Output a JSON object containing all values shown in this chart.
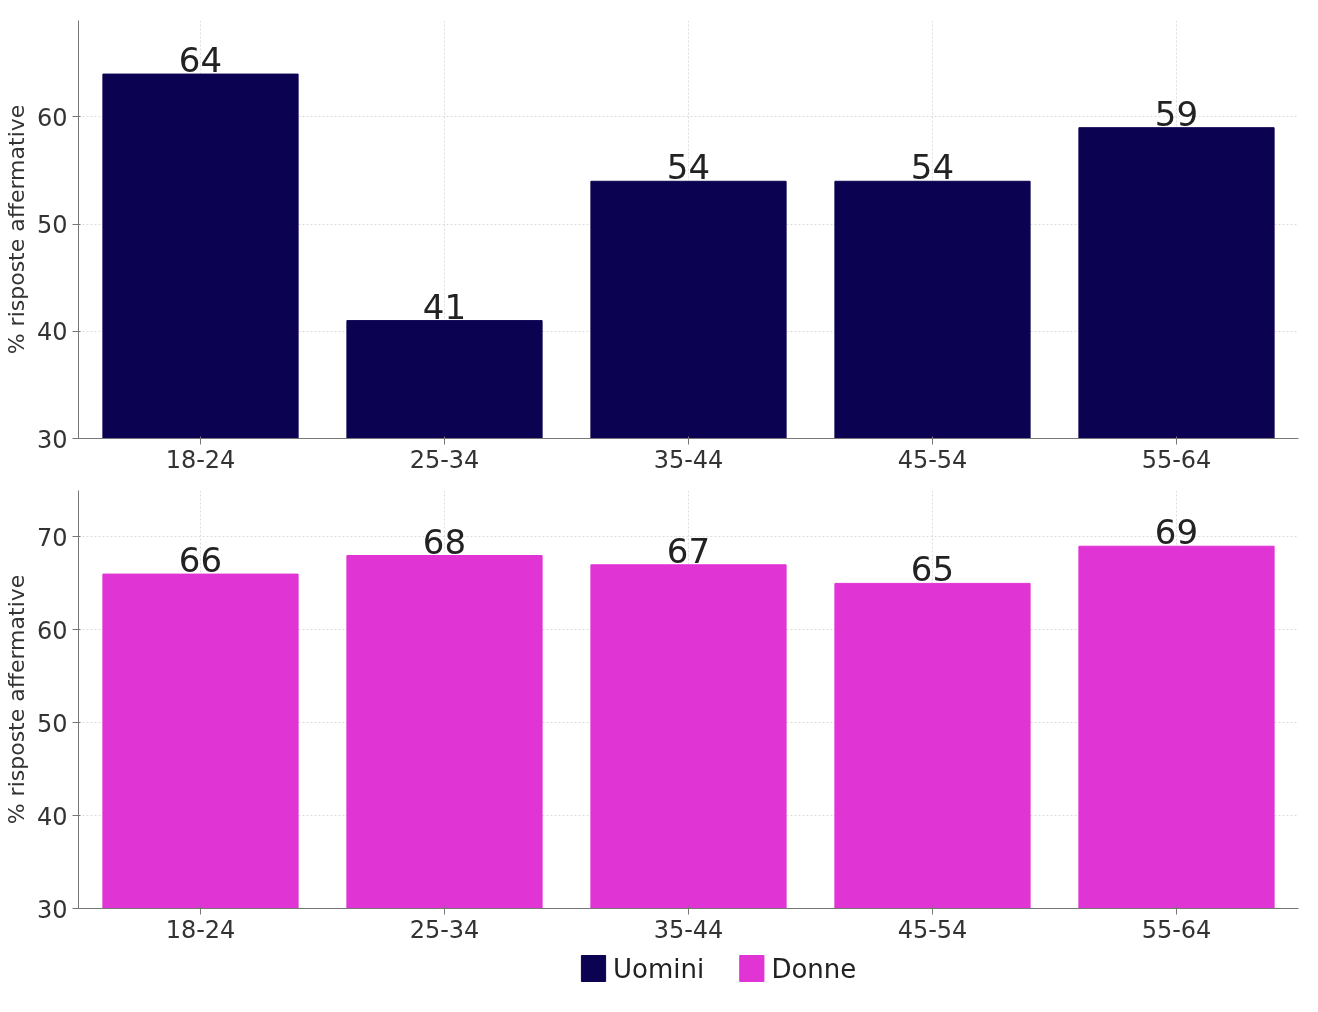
{
  "chart_data": [
    {
      "type": "bar",
      "ylabel": "% risposte affermative",
      "categories": [
        "18-24",
        "25-34",
        "35-44",
        "45-54",
        "55-64"
      ],
      "series": [
        {
          "name": "Uomini",
          "color": "#0b0352",
          "values": [
            64,
            41,
            54,
            54,
            59
          ]
        }
      ],
      "ylim": [
        30,
        69
      ],
      "yticks": [
        30,
        40,
        50,
        60
      ],
      "grid": true,
      "data_labels": true,
      "legend": "bottom"
    },
    {
      "type": "bar",
      "ylabel": "% risposte affermative",
      "categories": [
        "18-24",
        "25-34",
        "35-44",
        "45-54",
        "55-64"
      ],
      "series": [
        {
          "name": "Donne",
          "color": "#e034d4",
          "values": [
            66,
            68,
            67,
            65,
            69
          ]
        }
      ],
      "ylim": [
        30,
        75
      ],
      "yticks": [
        30,
        40,
        50,
        60,
        70
      ],
      "grid": true,
      "data_labels": true,
      "legend": "bottom"
    }
  ]
}
